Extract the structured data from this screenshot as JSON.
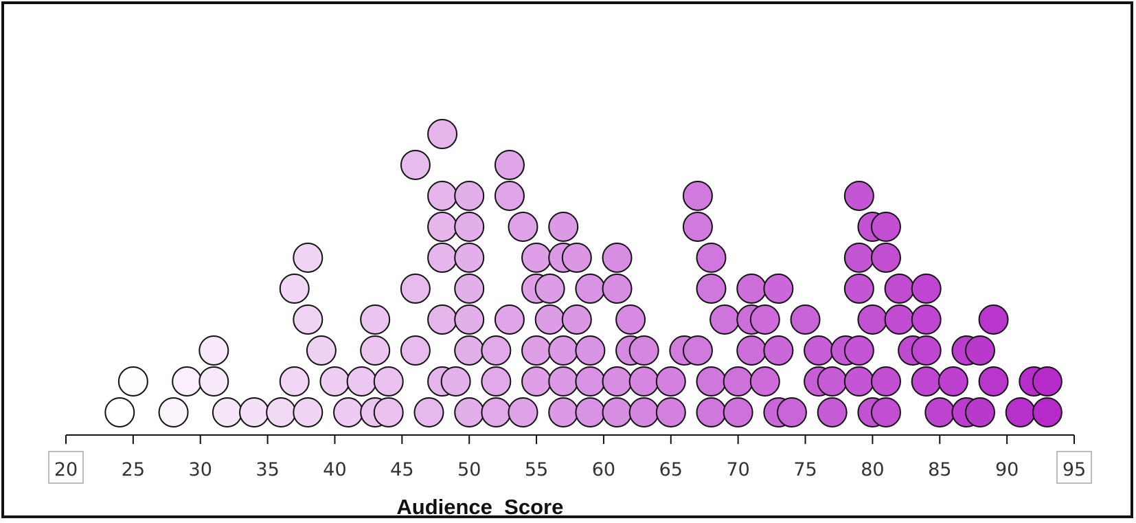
{
  "chart_data": {
    "type": "scatter",
    "subtype": "dot-plot",
    "xlabel": "Audience_Score",
    "xlim": [
      20,
      95
    ],
    "x_ticks": [
      20,
      25,
      30,
      35,
      40,
      45,
      50,
      55,
      60,
      65,
      70,
      75,
      80,
      85,
      90,
      95
    ],
    "boxed_ticks": [
      20,
      95
    ],
    "color_low": "#ffffff",
    "color_high": "#b52ac9",
    "grid": false,
    "legend": "none",
    "points": [
      {
        "x": 24,
        "level": 0
      },
      {
        "x": 25,
        "level": 1
      },
      {
        "x": 28,
        "level": 0
      },
      {
        "x": 29,
        "level": 1
      },
      {
        "x": 31,
        "level": 1
      },
      {
        "x": 31,
        "level": 2
      },
      {
        "x": 32,
        "level": 0
      },
      {
        "x": 34,
        "level": 0
      },
      {
        "x": 36,
        "level": 0
      },
      {
        "x": 37,
        "level": 1
      },
      {
        "x": 37,
        "level": 4
      },
      {
        "x": 38,
        "level": 0
      },
      {
        "x": 38,
        "level": 3
      },
      {
        "x": 38,
        "level": 5
      },
      {
        "x": 39,
        "level": 2
      },
      {
        "x": 40,
        "level": 1
      },
      {
        "x": 41,
        "level": 0
      },
      {
        "x": 42,
        "level": 1
      },
      {
        "x": 43,
        "level": 0
      },
      {
        "x": 43,
        "level": 2
      },
      {
        "x": 43,
        "level": 3
      },
      {
        "x": 44,
        "level": 0
      },
      {
        "x": 44,
        "level": 1
      },
      {
        "x": 46,
        "level": 2
      },
      {
        "x": 46,
        "level": 4
      },
      {
        "x": 46,
        "level": 8
      },
      {
        "x": 47,
        "level": 0
      },
      {
        "x": 48,
        "level": 1
      },
      {
        "x": 48,
        "level": 3
      },
      {
        "x": 48,
        "level": 5
      },
      {
        "x": 48,
        "level": 6
      },
      {
        "x": 48,
        "level": 7
      },
      {
        "x": 48,
        "level": 9
      },
      {
        "x": 49,
        "level": 1
      },
      {
        "x": 50,
        "level": 0
      },
      {
        "x": 50,
        "level": 2
      },
      {
        "x": 50,
        "level": 3
      },
      {
        "x": 50,
        "level": 4
      },
      {
        "x": 50,
        "level": 5
      },
      {
        "x": 50,
        "level": 6
      },
      {
        "x": 50,
        "level": 7
      },
      {
        "x": 52,
        "level": 0
      },
      {
        "x": 52,
        "level": 1
      },
      {
        "x": 52,
        "level": 2
      },
      {
        "x": 53,
        "level": 3
      },
      {
        "x": 53,
        "level": 7
      },
      {
        "x": 53,
        "level": 8
      },
      {
        "x": 54,
        "level": 0
      },
      {
        "x": 54,
        "level": 6
      },
      {
        "x": 55,
        "level": 1
      },
      {
        "x": 55,
        "level": 2
      },
      {
        "x": 55,
        "level": 4
      },
      {
        "x": 55,
        "level": 5
      },
      {
        "x": 56,
        "level": 3
      },
      {
        "x": 56,
        "level": 4
      },
      {
        "x": 57,
        "level": 0
      },
      {
        "x": 57,
        "level": 1
      },
      {
        "x": 57,
        "level": 2
      },
      {
        "x": 57,
        "level": 5
      },
      {
        "x": 57,
        "level": 6
      },
      {
        "x": 58,
        "level": 3
      },
      {
        "x": 58,
        "level": 5
      },
      {
        "x": 59,
        "level": 0
      },
      {
        "x": 59,
        "level": 1
      },
      {
        "x": 59,
        "level": 2
      },
      {
        "x": 59,
        "level": 4
      },
      {
        "x": 61,
        "level": 0
      },
      {
        "x": 61,
        "level": 1
      },
      {
        "x": 61,
        "level": 4
      },
      {
        "x": 61,
        "level": 5
      },
      {
        "x": 62,
        "level": 2
      },
      {
        "x": 62,
        "level": 3
      },
      {
        "x": 63,
        "level": 0
      },
      {
        "x": 63,
        "level": 1
      },
      {
        "x": 63,
        "level": 2
      },
      {
        "x": 65,
        "level": 0
      },
      {
        "x": 65,
        "level": 1
      },
      {
        "x": 66,
        "level": 2
      },
      {
        "x": 67,
        "level": 2
      },
      {
        "x": 67,
        "level": 6
      },
      {
        "x": 67,
        "level": 7
      },
      {
        "x": 68,
        "level": 0
      },
      {
        "x": 68,
        "level": 1
      },
      {
        "x": 68,
        "level": 4
      },
      {
        "x": 68,
        "level": 5
      },
      {
        "x": 69,
        "level": 3
      },
      {
        "x": 70,
        "level": 0
      },
      {
        "x": 70,
        "level": 1
      },
      {
        "x": 71,
        "level": 2
      },
      {
        "x": 71,
        "level": 3
      },
      {
        "x": 71,
        "level": 4
      },
      {
        "x": 72,
        "level": 1
      },
      {
        "x": 72,
        "level": 3
      },
      {
        "x": 73,
        "level": 0
      },
      {
        "x": 73,
        "level": 2
      },
      {
        "x": 73,
        "level": 4
      },
      {
        "x": 74,
        "level": 0
      },
      {
        "x": 75,
        "level": 3
      },
      {
        "x": 76,
        "level": 1
      },
      {
        "x": 76,
        "level": 2
      },
      {
        "x": 77,
        "level": 0
      },
      {
        "x": 77,
        "level": 1
      },
      {
        "x": 78,
        "level": 2
      },
      {
        "x": 79,
        "level": 1
      },
      {
        "x": 79,
        "level": 2
      },
      {
        "x": 79,
        "level": 4
      },
      {
        "x": 79,
        "level": 5
      },
      {
        "x": 79,
        "level": 7
      },
      {
        "x": 80,
        "level": 0
      },
      {
        "x": 80,
        "level": 3
      },
      {
        "x": 80,
        "level": 6
      },
      {
        "x": 81,
        "level": 0
      },
      {
        "x": 81,
        "level": 1
      },
      {
        "x": 81,
        "level": 5
      },
      {
        "x": 81,
        "level": 6
      },
      {
        "x": 82,
        "level": 3
      },
      {
        "x": 82,
        "level": 4
      },
      {
        "x": 83,
        "level": 2
      },
      {
        "x": 84,
        "level": 1
      },
      {
        "x": 84,
        "level": 2
      },
      {
        "x": 84,
        "level": 3
      },
      {
        "x": 84,
        "level": 4
      },
      {
        "x": 85,
        "level": 0
      },
      {
        "x": 86,
        "level": 1
      },
      {
        "x": 87,
        "level": 0
      },
      {
        "x": 87,
        "level": 2
      },
      {
        "x": 88,
        "level": 0
      },
      {
        "x": 88,
        "level": 2
      },
      {
        "x": 89,
        "level": 1
      },
      {
        "x": 89,
        "level": 3
      },
      {
        "x": 91,
        "level": 0
      },
      {
        "x": 92,
        "level": 1
      },
      {
        "x": 93,
        "level": 0
      },
      {
        "x": 93,
        "level": 1
      }
    ]
  }
}
